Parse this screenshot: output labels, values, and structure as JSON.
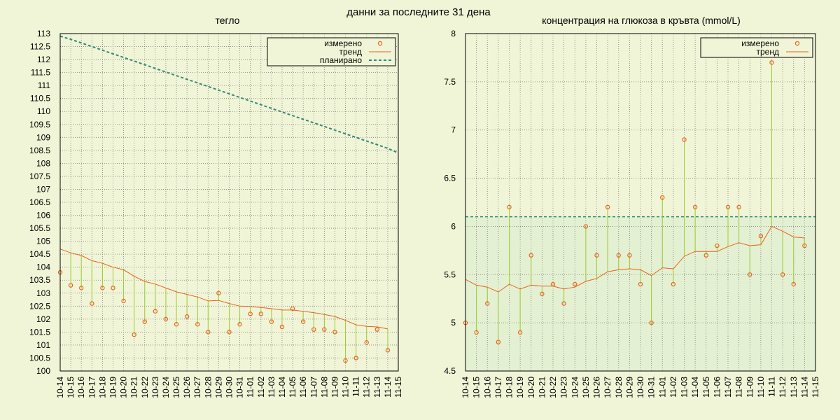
{
  "title": "данни за последните 31 дена",
  "colors": {
    "background": "#f1f5d7",
    "measured": "#e8631a",
    "trend": "#e8631a",
    "planned": "#2f8a7a",
    "stem": "#9ccb33",
    "grid": "#7d7d7d",
    "target_fill": "#e4f0d2"
  },
  "legend_labels": {
    "measured": "измерено",
    "trend": "тренд",
    "planned": "планирано"
  },
  "chart_data": [
    {
      "type": "line",
      "title": "тегло",
      "legend": "top-right",
      "grid": true,
      "x": [
        "10-14",
        "10-15",
        "10-16",
        "10-17",
        "10-18",
        "10-19",
        "10-20",
        "10-21",
        "10-22",
        "10-23",
        "10-24",
        "10-25",
        "10-26",
        "10-27",
        "10-28",
        "10-29",
        "10-30",
        "10-31",
        "11-01",
        "11-02",
        "11-03",
        "11-04",
        "11-05",
        "11-06",
        "11-07",
        "11-08",
        "11-09",
        "11-10",
        "11-11",
        "11-12",
        "11-13",
        "11-14",
        "11-15"
      ],
      "ylim": [
        100,
        113
      ],
      "yticks": [
        "100",
        "100.5",
        "101",
        "101.5",
        "102",
        "102.5",
        "103",
        "103.5",
        "104",
        "104.5",
        "105",
        "105.5",
        "106",
        "106.5",
        "107",
        "107.5",
        "108",
        "108.5",
        "109",
        "109.5",
        "110",
        "110.5",
        "111",
        "111.5",
        "112",
        "112.5",
        "113"
      ],
      "series": [
        {
          "name": "измерено",
          "kind": "points",
          "values": [
            103.8,
            103.3,
            103.2,
            102.6,
            103.2,
            103.2,
            102.7,
            101.4,
            101.9,
            102.3,
            102.0,
            101.8,
            102.1,
            101.8,
            101.5,
            103.0,
            101.5,
            101.8,
            102.2,
            102.2,
            101.9,
            101.7,
            102.4,
            101.9,
            101.6,
            101.6,
            101.5,
            100.4,
            100.5,
            101.1,
            101.6,
            100.8,
            null
          ]
        },
        {
          "name": "тренд",
          "kind": "line",
          "values": [
            104.7,
            104.55,
            104.45,
            104.25,
            104.15,
            104.0,
            103.9,
            103.65,
            103.45,
            103.35,
            103.2,
            103.05,
            102.95,
            102.85,
            102.7,
            102.72,
            102.6,
            102.5,
            102.48,
            102.45,
            102.4,
            102.35,
            102.35,
            102.3,
            102.25,
            102.18,
            102.1,
            101.95,
            101.78,
            101.72,
            101.7,
            101.62,
            null
          ]
        },
        {
          "name": "планирано",
          "kind": "dashed",
          "values": [
            112.9,
            112.78,
            112.64,
            112.5,
            112.36,
            112.22,
            112.08,
            111.94,
            111.8,
            111.66,
            111.52,
            111.38,
            111.24,
            111.1,
            110.96,
            110.82,
            110.68,
            110.54,
            110.4,
            110.26,
            110.12,
            109.98,
            109.84,
            109.7,
            109.56,
            109.42,
            109.28,
            109.14,
            109.0,
            108.86,
            108.72,
            108.58,
            108.4
          ]
        }
      ]
    },
    {
      "type": "line",
      "title": "концентрация на глюкоза в кръвта (mmol/L)",
      "legend": "top-right",
      "grid": true,
      "x": [
        "10-14",
        "10-15",
        "10-16",
        "10-17",
        "10-18",
        "10-19",
        "10-20",
        "10-21",
        "10-22",
        "10-23",
        "10-24",
        "10-25",
        "10-26",
        "10-27",
        "10-28",
        "10-29",
        "10-30",
        "10-31",
        "11-01",
        "11-02",
        "11-03",
        "11-04",
        "11-05",
        "11-06",
        "11-07",
        "11-08",
        "11-09",
        "11-10",
        "11-11",
        "11-12",
        "11-13",
        "11-14",
        "11-15"
      ],
      "ylim": [
        4.5,
        8
      ],
      "yticks": [
        "4.5",
        "5",
        "5.5",
        "6",
        "6.5",
        "7",
        "7.5",
        "8"
      ],
      "target_upper": 6.1,
      "series": [
        {
          "name": "измерено",
          "kind": "points",
          "values": [
            5.0,
            4.9,
            5.2,
            4.8,
            6.2,
            4.9,
            5.7,
            5.3,
            5.4,
            5.2,
            5.4,
            6.0,
            5.7,
            6.2,
            5.7,
            5.7,
            5.4,
            5.0,
            6.3,
            5.4,
            6.9,
            6.2,
            5.7,
            5.8,
            6.2,
            6.2,
            5.5,
            5.9,
            7.7,
            5.5,
            5.4,
            5.8,
            null
          ]
        },
        {
          "name": "тренд",
          "kind": "line",
          "values": [
            5.45,
            5.39,
            5.37,
            5.32,
            5.4,
            5.35,
            5.39,
            5.38,
            5.38,
            5.35,
            5.37,
            5.43,
            5.46,
            5.53,
            5.55,
            5.56,
            5.55,
            5.49,
            5.57,
            5.56,
            5.69,
            5.74,
            5.74,
            5.74,
            5.79,
            5.83,
            5.8,
            5.81,
            6.0,
            5.95,
            5.89,
            5.88,
            null
          ]
        }
      ]
    }
  ]
}
